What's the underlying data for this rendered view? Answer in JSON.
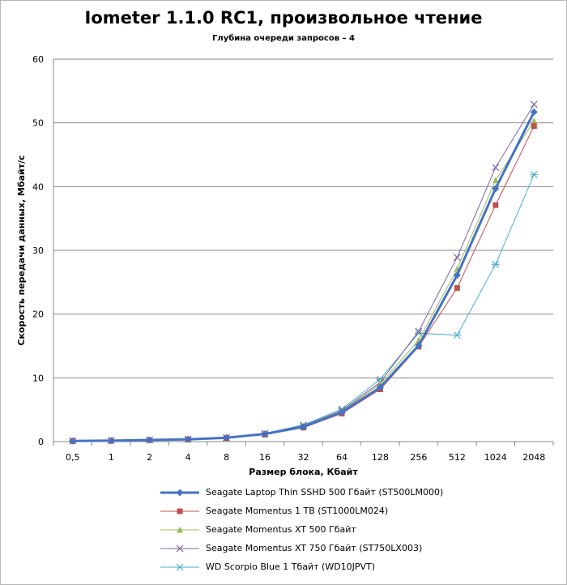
{
  "chart_data": {
    "type": "line",
    "title": "Iometer 1.1.0 RC1, произвольное чтение",
    "subtitle": "Глубина очереди запросов – 4",
    "xlabel": "Размер блока, Кбайт",
    "ylabel": "Скорость передачи данных, Мбайт/с",
    "categories": [
      "0,5",
      "1",
      "2",
      "4",
      "8",
      "16",
      "32",
      "64",
      "128",
      "256",
      "512",
      "1024",
      "2048"
    ],
    "ylim": [
      0,
      60
    ],
    "yticks": [
      0,
      10,
      20,
      30,
      40,
      50,
      60
    ],
    "grid": true,
    "legend_position": "bottom",
    "series": [
      {
        "name": "Seagate Laptop Thin SSHD 500 Гбайт (ST500LM000)",
        "color": "#4572C4",
        "marker": "diamond",
        "width": 3,
        "values": [
          0.1,
          0.15,
          0.25,
          0.35,
          0.6,
          1.2,
          2.3,
          4.6,
          8.5,
          15.1,
          26.1,
          39.7,
          51.7
        ]
      },
      {
        "name": "Seagate Momentus 1 TB (ST1000LM024)",
        "color": "#C0504D",
        "marker": "square",
        "width": 1,
        "values": [
          0.1,
          0.14,
          0.23,
          0.33,
          0.55,
          1.1,
          2.2,
          4.4,
          8.2,
          14.9,
          24.1,
          37.1,
          49.5
        ]
      },
      {
        "name": "Seagate Momentus XT 500 Гбайт",
        "color": "#9BBB59",
        "marker": "triangle",
        "width": 1,
        "values": [
          0.1,
          0.15,
          0.25,
          0.35,
          0.6,
          1.2,
          2.4,
          4.8,
          9.0,
          15.9,
          27.1,
          41.0,
          50.3
        ]
      },
      {
        "name": "Seagate Momentus XT 750 Гбайт (ST750LX003)",
        "color": "#8064A2",
        "marker": "x",
        "width": 1,
        "values": [
          0.1,
          0.15,
          0.26,
          0.37,
          0.62,
          1.25,
          2.5,
          4.9,
          9.3,
          17.3,
          28.9,
          43.0,
          52.9
        ]
      },
      {
        "name": "WD Scorpio Blue 1 Тбайт (WD10JPVT)",
        "color": "#4BACC6",
        "marker": "star",
        "width": 1,
        "values": [
          0.1,
          0.15,
          0.27,
          0.38,
          0.65,
          1.3,
          2.6,
          5.1,
          9.8,
          17.0,
          16.7,
          27.8,
          41.9
        ]
      }
    ]
  }
}
